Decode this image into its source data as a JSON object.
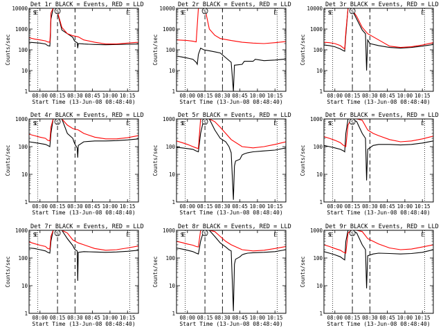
{
  "time_ticks": [
    "08:00",
    "08:15",
    "08:30",
    "08:45",
    "10:00",
    "10:15"
  ],
  "xlabel": "Start Time (13-Jun-08 08:48:40)",
  "ylabel": "Counts/sec",
  "marker_s": "S",
  "marker_e": "E",
  "line_colors": {
    "events": "#000000",
    "lld": "#ff0000"
  },
  "chart_data": [
    {
      "type": "line",
      "title": "Det 1r BLACK = Events, RED = LLD",
      "y_ticks": [
        "1",
        "10",
        "100",
        "1000",
        "10000"
      ],
      "ylim": [
        1,
        10000
      ],
      "yscale": "log",
      "series": [
        {
          "color": "#000000",
          "x": [
            0,
            0.05,
            0.1,
            0.15,
            0.17,
            0.19,
            0.195,
            0.2,
            0.22,
            0.25,
            0.3,
            0.35,
            0.4,
            0.41,
            0.42,
            0.44,
            0.445,
            0.45,
            0.5,
            0.6,
            0.7,
            0.8,
            0.9,
            1.0
          ],
          "y": [
            230,
            220,
            210,
            190,
            160,
            150,
            400,
            3000,
            10000,
            10000,
            900,
            600,
            400,
            300,
            250,
            220,
            120,
            200,
            190,
            180,
            175,
            180,
            185,
            190
          ]
        },
        {
          "color": "#ff0000",
          "x": [
            0,
            0.05,
            0.1,
            0.15,
            0.17,
            0.19,
            0.195,
            0.2,
            0.22,
            0.25,
            0.3,
            0.35,
            0.4,
            0.45,
            0.5,
            0.6,
            0.7,
            0.8,
            0.9,
            1.0
          ],
          "y": [
            380,
            330,
            300,
            270,
            240,
            230,
            700,
            6000,
            10000,
            10000,
            1200,
            600,
            480,
            420,
            300,
            230,
            190,
            190,
            210,
            230
          ]
        }
      ]
    },
    {
      "type": "line",
      "title": "Det 2r BLACK = Events, RED = LLD",
      "y_ticks": [
        "1",
        "10",
        "100",
        "1000",
        "10000"
      ],
      "ylim": [
        1,
        10000
      ],
      "yscale": "log",
      "series": [
        {
          "color": "#000000",
          "x": [
            0,
            0.05,
            0.1,
            0.15,
            0.18,
            0.19,
            0.2,
            0.22,
            0.25,
            0.3,
            0.35,
            0.4,
            0.5,
            0.52,
            0.53,
            0.6,
            0.62,
            0.7,
            0.72,
            0.8,
            0.9,
            1.0
          ],
          "y": [
            50,
            45,
            40,
            35,
            25,
            20,
            60,
            120,
            100,
            90,
            80,
            70,
            25,
            1,
            18,
            20,
            28,
            28,
            35,
            30,
            32,
            36
          ]
        },
        {
          "color": "#ff0000",
          "x": [
            0,
            0.1,
            0.15,
            0.18,
            0.2,
            0.22,
            0.26,
            0.3,
            0.35,
            0.4,
            0.5,
            0.6,
            0.7,
            0.8,
            0.9,
            1.0
          ],
          "y": [
            300,
            280,
            260,
            240,
            10000,
            10000,
            10000,
            1000,
            500,
            350,
            280,
            230,
            210,
            200,
            220,
            250
          ]
        }
      ]
    },
    {
      "type": "line",
      "title": "Det 3r BLACK = Events, RED = LLD",
      "y_ticks": [
        "1",
        "10",
        "100",
        "1000",
        "10000"
      ],
      "ylim": [
        1,
        10000
      ],
      "yscale": "log",
      "series": [
        {
          "color": "#000000",
          "x": [
            0,
            0.05,
            0.1,
            0.15,
            0.18,
            0.19,
            0.2,
            0.22,
            0.25,
            0.3,
            0.35,
            0.38,
            0.39,
            0.4,
            0.42,
            0.5,
            0.6,
            0.7,
            0.8,
            0.9,
            1.0
          ],
          "y": [
            170,
            160,
            140,
            110,
            90,
            85,
            500,
            10000,
            10000,
            3000,
            900,
            600,
            10,
            300,
            200,
            160,
            130,
            120,
            130,
            150,
            180
          ]
        },
        {
          "color": "#ff0000",
          "x": [
            0,
            0.05,
            0.1,
            0.15,
            0.18,
            0.19,
            0.2,
            0.22,
            0.25,
            0.3,
            0.35,
            0.4,
            0.5,
            0.6,
            0.7,
            0.8,
            0.9,
            1.0
          ],
          "y": [
            230,
            220,
            200,
            160,
            120,
            110,
            700,
            10000,
            10000,
            4000,
            1200,
            600,
            300,
            150,
            130,
            140,
            170,
            220
          ]
        }
      ]
    },
    {
      "type": "line",
      "title": "Det 4r BLACK = Events, RED = LLD",
      "y_ticks": [
        "1",
        "10",
        "100",
        "1000"
      ],
      "ylim": [
        1,
        1000
      ],
      "yscale": "log",
      "series": [
        {
          "color": "#000000",
          "x": [
            0,
            0.05,
            0.1,
            0.15,
            0.17,
            0.19,
            0.2,
            0.22,
            0.26,
            0.3,
            0.35,
            0.4,
            0.41,
            0.42,
            0.44,
            0.445,
            0.45,
            0.5,
            0.6,
            0.7,
            0.8,
            0.9,
            1.0
          ],
          "y": [
            150,
            140,
            130,
            120,
            110,
            100,
            300,
            1000,
            1000,
            1000,
            300,
            200,
            150,
            120,
            90,
            40,
            110,
            150,
            160,
            160,
            165,
            175,
            190
          ]
        },
        {
          "color": "#ff0000",
          "x": [
            0,
            0.05,
            0.1,
            0.15,
            0.17,
            0.19,
            0.2,
            0.22,
            0.3,
            0.35,
            0.4,
            0.45,
            0.5,
            0.6,
            0.7,
            0.8,
            0.9,
            1.0
          ],
          "y": [
            280,
            250,
            220,
            200,
            170,
            160,
            500,
            1000,
            1000,
            600,
            450,
            400,
            300,
            220,
            190,
            190,
            210,
            250
          ]
        }
      ]
    },
    {
      "type": "line",
      "title": "Det 5r BLACK = Events, RED = LLD",
      "y_ticks": [
        "1",
        "10",
        "100",
        "1000"
      ],
      "ylim": [
        1,
        1000
      ],
      "yscale": "log",
      "series": [
        {
          "color": "#000000",
          "x": [
            0,
            0.05,
            0.1,
            0.15,
            0.18,
            0.2,
            0.22,
            0.25,
            0.3,
            0.35,
            0.4,
            0.45,
            0.48,
            0.5,
            0.52,
            0.53,
            0.54,
            0.58,
            0.6,
            0.62,
            0.65,
            0.7,
            0.8,
            0.9,
            1.0
          ],
          "y": [
            95,
            90,
            85,
            80,
            70,
            65,
            300,
            1000,
            1000,
            400,
            200,
            150,
            100,
            60,
            1.2,
            20,
            30,
            35,
            50,
            55,
            60,
            65,
            70,
            75,
            90
          ]
        },
        {
          "color": "#ff0000",
          "x": [
            0,
            0.05,
            0.1,
            0.15,
            0.18,
            0.2,
            0.22,
            0.25,
            0.3,
            0.35,
            0.4,
            0.45,
            0.5,
            0.6,
            0.7,
            0.8,
            0.9,
            1.0
          ],
          "y": [
            160,
            140,
            120,
            100,
            90,
            85,
            1000,
            1000,
            1000,
            800,
            500,
            300,
            180,
            100,
            90,
            100,
            120,
            150
          ]
        }
      ]
    },
    {
      "type": "line",
      "title": "Det 6r BLACK = Events, RED = LLD",
      "y_ticks": [
        "1",
        "10",
        "100",
        "1000"
      ],
      "ylim": [
        1,
        1000
      ],
      "yscale": "log",
      "series": [
        {
          "color": "#000000",
          "x": [
            0,
            0.05,
            0.1,
            0.15,
            0.18,
            0.19,
            0.2,
            0.22,
            0.26,
            0.3,
            0.35,
            0.38,
            0.39,
            0.4,
            0.45,
            0.5,
            0.6,
            0.7,
            0.8,
            0.9,
            1.0
          ],
          "y": [
            110,
            100,
            90,
            80,
            70,
            65,
            300,
            1000,
            1000,
            800,
            300,
            200,
            6,
            80,
            110,
            120,
            120,
            115,
            120,
            135,
            160
          ]
        },
        {
          "color": "#ff0000",
          "x": [
            0,
            0.05,
            0.1,
            0.15,
            0.18,
            0.2,
            0.22,
            0.25,
            0.3,
            0.35,
            0.4,
            0.45,
            0.5,
            0.6,
            0.7,
            0.8,
            0.9,
            1.0
          ],
          "y": [
            230,
            200,
            170,
            140,
            110,
            100,
            600,
            1000,
            1000,
            900,
            400,
            300,
            250,
            180,
            150,
            160,
            190,
            240
          ]
        }
      ]
    },
    {
      "type": "line",
      "title": "Det 7r BLACK = Events, RED = LLD",
      "y_ticks": [
        "1",
        "10",
        "100",
        "1000"
      ],
      "ylim": [
        1,
        1000
      ],
      "yscale": "log",
      "series": [
        {
          "color": "#000000",
          "x": [
            0,
            0.05,
            0.1,
            0.15,
            0.17,
            0.19,
            0.2,
            0.22,
            0.26,
            0.3,
            0.35,
            0.4,
            0.41,
            0.42,
            0.44,
            0.445,
            0.45,
            0.5,
            0.6,
            0.7,
            0.8,
            0.9,
            1.0
          ],
          "y": [
            230,
            220,
            200,
            180,
            160,
            150,
            400,
            1000,
            1000,
            1000,
            500,
            280,
            230,
            200,
            180,
            15,
            160,
            170,
            165,
            160,
            165,
            175,
            190
          ]
        },
        {
          "color": "#ff0000",
          "x": [
            0,
            0.05,
            0.1,
            0.15,
            0.17,
            0.19,
            0.2,
            0.22,
            0.3,
            0.35,
            0.4,
            0.45,
            0.5,
            0.6,
            0.7,
            0.8,
            0.9,
            1.0
          ],
          "y": [
            380,
            330,
            290,
            260,
            220,
            210,
            600,
            1000,
            1000,
            800,
            450,
            350,
            300,
            220,
            190,
            200,
            230,
            270
          ]
        }
      ]
    },
    {
      "type": "line",
      "title": "Det 8r BLACK = Events, RED = LLD",
      "y_ticks": [
        "1",
        "10",
        "100",
        "1000"
      ],
      "ylim": [
        1,
        1000
      ],
      "yscale": "log",
      "series": [
        {
          "color": "#000000",
          "x": [
            0,
            0.05,
            0.1,
            0.15,
            0.18,
            0.2,
            0.22,
            0.25,
            0.3,
            0.35,
            0.4,
            0.45,
            0.48,
            0.5,
            0.52,
            0.53,
            0.54,
            0.58,
            0.6,
            0.62,
            0.65,
            0.7,
            0.8,
            0.9,
            1.0
          ],
          "y": [
            230,
            210,
            190,
            170,
            150,
            140,
            400,
            1000,
            1000,
            600,
            350,
            250,
            200,
            180,
            1.2,
            60,
            90,
            110,
            130,
            140,
            150,
            155,
            160,
            170,
            200
          ]
        },
        {
          "color": "#ff0000",
          "x": [
            0,
            0.05,
            0.1,
            0.15,
            0.18,
            0.2,
            0.22,
            0.25,
            0.3,
            0.35,
            0.4,
            0.45,
            0.5,
            0.6,
            0.7,
            0.8,
            0.9,
            1.0
          ],
          "y": [
            400,
            360,
            320,
            290,
            260,
            250,
            1000,
            1000,
            1000,
            900,
            600,
            400,
            300,
            200,
            180,
            190,
            220,
            260
          ]
        }
      ]
    },
    {
      "type": "line",
      "title": "Det 9r BLACK = Events, RED = LLD",
      "y_ticks": [
        "1",
        "10",
        "100",
        "1000"
      ],
      "ylim": [
        1,
        1000
      ],
      "yscale": "log",
      "series": [
        {
          "color": "#000000",
          "x": [
            0,
            0.05,
            0.1,
            0.15,
            0.18,
            0.19,
            0.2,
            0.22,
            0.26,
            0.3,
            0.35,
            0.38,
            0.39,
            0.4,
            0.45,
            0.5,
            0.6,
            0.7,
            0.8,
            0.9,
            1.0
          ],
          "y": [
            170,
            150,
            130,
            110,
            90,
            85,
            400,
            1000,
            1000,
            800,
            300,
            200,
            8,
            120,
            140,
            150,
            145,
            140,
            145,
            160,
            200
          ]
        },
        {
          "color": "#ff0000",
          "x": [
            0,
            0.05,
            0.1,
            0.15,
            0.18,
            0.2,
            0.22,
            0.25,
            0.3,
            0.35,
            0.4,
            0.45,
            0.5,
            0.6,
            0.7,
            0.8,
            0.9,
            1.0
          ],
          "y": [
            300,
            260,
            220,
            190,
            160,
            150,
            800,
            1000,
            1000,
            900,
            500,
            400,
            320,
            230,
            200,
            210,
            250,
            300
          ]
        }
      ]
    }
  ]
}
